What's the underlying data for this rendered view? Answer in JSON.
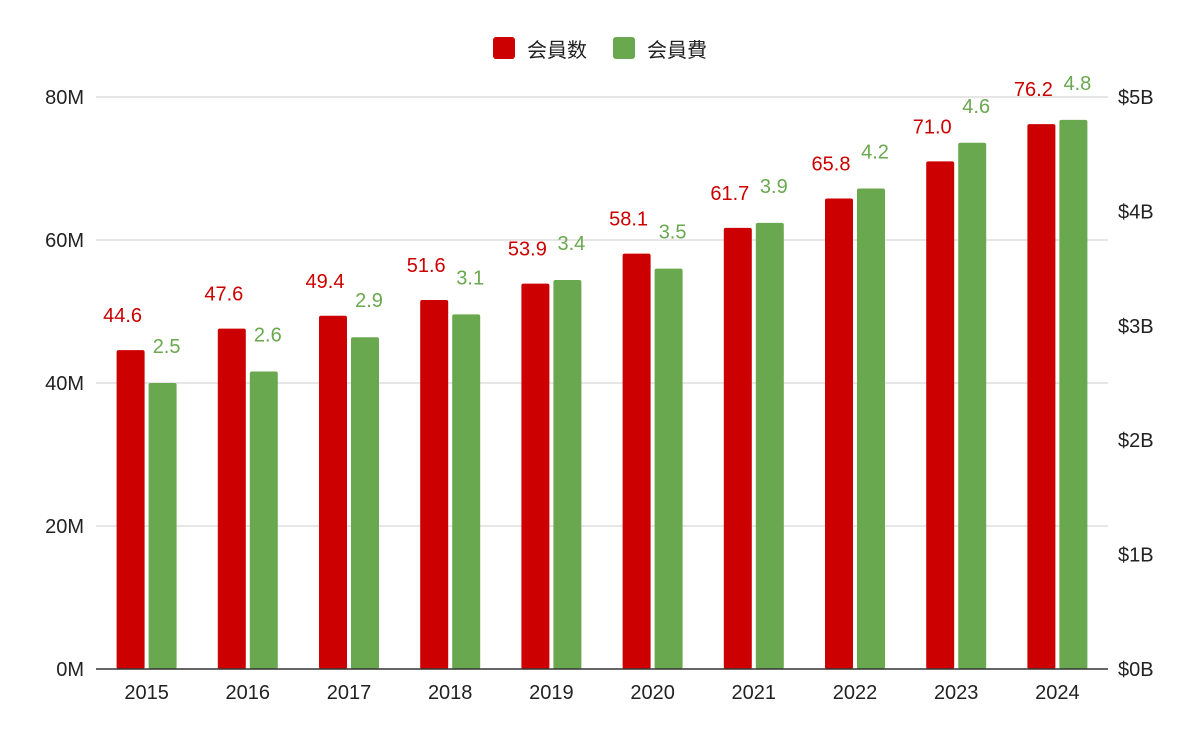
{
  "chart_data": {
    "type": "bar",
    "categories": [
      "2015",
      "2016",
      "2017",
      "2018",
      "2019",
      "2020",
      "2021",
      "2022",
      "2023",
      "2024"
    ],
    "series": [
      {
        "name": "会員数",
        "axis": "left",
        "color": "#cc0000",
        "values": [
          44.6,
          47.6,
          49.4,
          51.6,
          53.9,
          58.1,
          61.7,
          65.8,
          71.0,
          76.2
        ],
        "data_labels": [
          "44.6",
          "47.6",
          "49.4",
          "51.6",
          "53.9",
          "58.1",
          "61.7",
          "65.8",
          "71.0",
          "76.2"
        ]
      },
      {
        "name": "会員費",
        "axis": "right",
        "color": "#6aa84f",
        "values": [
          2.5,
          2.6,
          2.9,
          3.1,
          3.4,
          3.5,
          3.9,
          4.2,
          4.6,
          4.8
        ],
        "data_labels": [
          "2.5",
          "2.6",
          "2.9",
          "3.1",
          "3.4",
          "3.5",
          "3.9",
          "4.2",
          "4.6",
          "4.8"
        ]
      }
    ],
    "y_left": {
      "ticks": [
        0,
        20,
        40,
        60,
        80
      ],
      "tick_labels": [
        "0M",
        "20M",
        "40M",
        "60M",
        "80M"
      ],
      "ylim": [
        0,
        80
      ]
    },
    "y_right": {
      "ticks": [
        0,
        1,
        2,
        3,
        4,
        5
      ],
      "tick_labels": [
        "$0B",
        "$1B",
        "$2B",
        "$3B",
        "$4B",
        "$5B"
      ],
      "ylim": [
        0,
        5
      ]
    },
    "grid": true,
    "legend_position": "top-center",
    "title": "",
    "xlabel": "",
    "ylabel": ""
  }
}
